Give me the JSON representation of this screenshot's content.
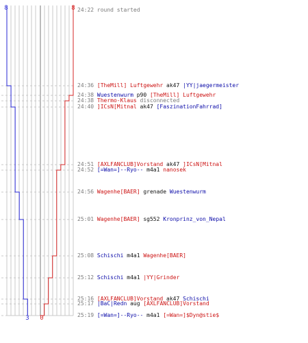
{
  "scoreboard": {
    "blue_color": "#2626d4",
    "red_color": "#d42626",
    "blue_start": "8",
    "red_start": "8",
    "blue_final": "3",
    "red_final": "0"
  },
  "events": [
    {
      "time": "24:22",
      "parts": [
        {
          "t": "round started",
          "c": "msg"
        }
      ]
    },
    {
      "time": "24:36",
      "parts": [
        {
          "t": "[TheMill] Luftgewehr",
          "c": "red"
        },
        {
          "t": " ak47 ",
          "c": "dark"
        },
        {
          "t": "|YY|jaegermeister",
          "c": "blue"
        }
      ]
    },
    {
      "time": "24:38",
      "parts": [
        {
          "t": "Wuestenwurm",
          "c": "blue"
        },
        {
          "t": " p90 ",
          "c": "dark"
        },
        {
          "t": "[TheMill] Luftgewehr",
          "c": "red"
        }
      ]
    },
    {
      "time": "24:38",
      "parts": [
        {
          "t": "Thermo-Klaus",
          "c": "red"
        },
        {
          "t": " disconnected",
          "c": "msg"
        }
      ]
    },
    {
      "time": "24:40",
      "parts": [
        {
          "t": "]ICsN[Mitnal",
          "c": "red"
        },
        {
          "t": " ak47 ",
          "c": "dark"
        },
        {
          "t": "[FaszinationFahrrad]",
          "c": "blue"
        }
      ]
    },
    {
      "time": "24:51",
      "parts": [
        {
          "t": "[AXLFANCLUB]Vorstand",
          "c": "red"
        },
        {
          "t": " ak47 ",
          "c": "dark"
        },
        {
          "t": "]ICsN[Mitnal",
          "c": "red"
        }
      ]
    },
    {
      "time": "24:52",
      "parts": [
        {
          "t": "[=Wan=]--Ryo--",
          "c": "blue"
        },
        {
          "t": " m4a1 ",
          "c": "dark"
        },
        {
          "t": "nanosek",
          "c": "red"
        }
      ]
    },
    {
      "time": "24:56",
      "parts": [
        {
          "t": "Wagenhe[BAER]",
          "c": "red"
        },
        {
          "t": " grenade ",
          "c": "dark"
        },
        {
          "t": "Wuestenwurm",
          "c": "blue"
        }
      ]
    },
    {
      "time": "25:01",
      "parts": [
        {
          "t": "Wagenhe[BAER]",
          "c": "red"
        },
        {
          "t": " sg552 ",
          "c": "dark"
        },
        {
          "t": "Kronprinz_von_Nepal",
          "c": "blue"
        }
      ]
    },
    {
      "time": "25:08",
      "parts": [
        {
          "t": "Schischi",
          "c": "blue"
        },
        {
          "t": " m4a1 ",
          "c": "dark"
        },
        {
          "t": "Wagenhe[BAER]",
          "c": "red"
        }
      ]
    },
    {
      "time": "25:12",
      "parts": [
        {
          "t": "Schischi",
          "c": "blue"
        },
        {
          "t": " m4a1 ",
          "c": "dark"
        },
        {
          "t": "|YY|Grinder",
          "c": "red"
        }
      ]
    },
    {
      "time": "25:16",
      "parts": [
        {
          "t": "[AXLFANCLUB]Vorstand",
          "c": "red"
        },
        {
          "t": " ak47 ",
          "c": "dark"
        },
        {
          "t": "Schischi",
          "c": "blue"
        }
      ]
    },
    {
      "time": "25:17",
      "parts": [
        {
          "t": "|BaC|Redn",
          "c": "blue"
        },
        {
          "t": " aug ",
          "c": "dark"
        },
        {
          "t": "[AXLFANCLUB]Vorstand",
          "c": "red"
        }
      ]
    },
    {
      "time": "25:19",
      "parts": [
        {
          "t": "[=Wan=]--Ryo--",
          "c": "blue"
        },
        {
          "t": " m4a1 ",
          "c": "dark"
        },
        {
          "t": "[=Wan=]$Dyn@stie$",
          "c": "red"
        }
      ]
    }
  ],
  "chart_data": {
    "type": "line",
    "x": [
      "24:22",
      "24:36",
      "24:38",
      "24:38",
      "24:40",
      "24:51",
      "24:52",
      "24:56",
      "25:01",
      "25:08",
      "25:12",
      "25:16",
      "25:17",
      "25:19"
    ],
    "series": [
      {
        "values": [
          8,
          7,
          7,
          7,
          6,
          6,
          6,
          5,
          4,
          4,
          4,
          3,
          3,
          3
        ]
      },
      {
        "values": [
          8,
          8,
          7,
          6,
          6,
          5,
          4,
          4,
          4,
          3,
          2,
          2,
          1,
          0
        ]
      }
    ],
    "ylim": [
      0,
      8
    ]
  }
}
